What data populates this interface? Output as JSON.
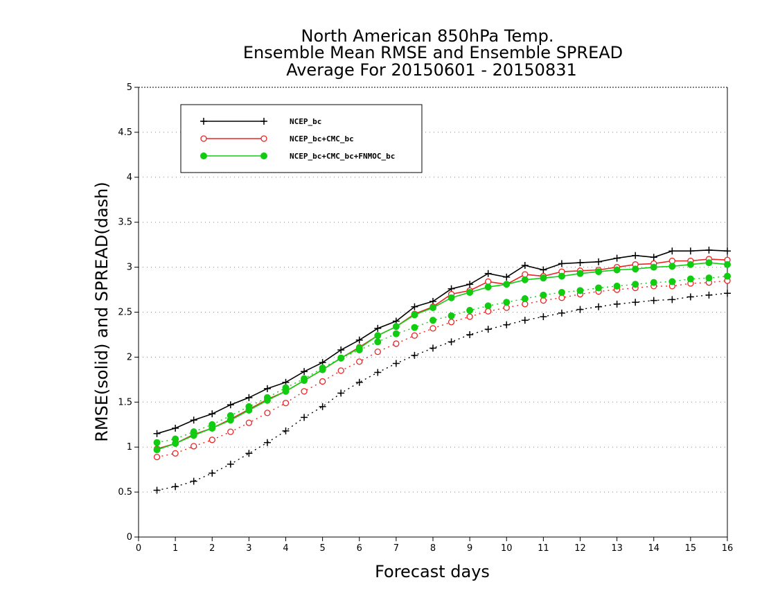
{
  "chart_data": {
    "type": "line",
    "title_lines": [
      "North American 850hPa Temp.",
      "Ensemble Mean RMSE and Ensemble SPREAD",
      "Average For 20150601 - 20150831"
    ],
    "xlabel": "Forecast days",
    "ylabel": "RMSE(solid) and SPREAD(dash)",
    "xlim": [
      0,
      16
    ],
    "ylim": [
      0,
      5
    ],
    "x_ticks": [
      0,
      1,
      2,
      3,
      4,
      5,
      6,
      7,
      8,
      9,
      10,
      11,
      12,
      13,
      14,
      15,
      16
    ],
    "y_ticks": [
      0,
      0.5,
      1,
      1.5,
      2,
      2.5,
      3,
      3.5,
      4,
      4.5,
      5
    ],
    "y_tick_labels": [
      "0",
      "0.5",
      "1",
      "1.5",
      "2",
      "2.5",
      "3",
      "3.5",
      "4",
      "4.5",
      "5"
    ],
    "grid": "horizontal dotted",
    "legend_placement": "top-left",
    "x": [
      0.5,
      1,
      1.5,
      2,
      2.5,
      3,
      3.5,
      4,
      4.5,
      5,
      5.5,
      6,
      6.5,
      7,
      7.5,
      8,
      8.5,
      9,
      9.5,
      10,
      10.5,
      11,
      11.5,
      12,
      12.5,
      13,
      13.5,
      14,
      14.5,
      15,
      15.5,
      16
    ],
    "series": [
      {
        "name": "NCEP_bc",
        "color": "#000000",
        "marker": "plus",
        "rmse": [
          1.15,
          1.21,
          1.3,
          1.37,
          1.47,
          1.55,
          1.65,
          1.72,
          1.84,
          1.94,
          2.08,
          2.19,
          2.32,
          2.4,
          2.56,
          2.62,
          2.76,
          2.81,
          2.93,
          2.89,
          3.02,
          2.97,
          3.04,
          3.05,
          3.06,
          3.1,
          3.13,
          3.11,
          3.18,
          3.18,
          3.19,
          3.18
        ],
        "spread": [
          0.52,
          0.56,
          0.62,
          0.71,
          0.81,
          0.93,
          1.05,
          1.18,
          1.33,
          1.45,
          1.6,
          1.72,
          1.83,
          1.93,
          2.02,
          2.1,
          2.17,
          2.25,
          2.31,
          2.36,
          2.41,
          2.45,
          2.49,
          2.53,
          2.56,
          2.59,
          2.61,
          2.63,
          2.64,
          2.67,
          2.69,
          2.71
        ]
      },
      {
        "name": "NCEP_bc+CMC_bc",
        "color": "#ee2222",
        "marker": "open-circle",
        "rmse": [
          0.98,
          1.04,
          1.14,
          1.21,
          1.31,
          1.42,
          1.53,
          1.62,
          1.74,
          1.86,
          1.99,
          2.11,
          2.24,
          2.34,
          2.48,
          2.56,
          2.7,
          2.74,
          2.84,
          2.81,
          2.92,
          2.9,
          2.95,
          2.96,
          2.97,
          3.0,
          3.03,
          3.04,
          3.07,
          3.07,
          3.09,
          3.08
        ],
        "spread": [
          0.89,
          0.93,
          1.01,
          1.08,
          1.17,
          1.27,
          1.38,
          1.49,
          1.62,
          1.73,
          1.85,
          1.95,
          2.06,
          2.15,
          2.24,
          2.32,
          2.39,
          2.45,
          2.51,
          2.55,
          2.59,
          2.63,
          2.66,
          2.7,
          2.73,
          2.75,
          2.77,
          2.79,
          2.79,
          2.82,
          2.83,
          2.85
        ]
      },
      {
        "name": "NCEP_bc+CMC_bc+FNMOC_bc",
        "color": "#11cc11",
        "marker": "filled-circle",
        "rmse": [
          0.97,
          1.04,
          1.13,
          1.21,
          1.3,
          1.41,
          1.52,
          1.62,
          1.74,
          1.86,
          1.99,
          2.1,
          2.24,
          2.34,
          2.47,
          2.55,
          2.66,
          2.72,
          2.78,
          2.81,
          2.86,
          2.88,
          2.9,
          2.93,
          2.95,
          2.97,
          2.98,
          3.0,
          3.01,
          3.03,
          3.05,
          3.03
        ],
        "spread": [
          1.05,
          1.09,
          1.17,
          1.25,
          1.35,
          1.45,
          1.55,
          1.66,
          1.76,
          1.88,
          1.99,
          2.08,
          2.17,
          2.26,
          2.33,
          2.41,
          2.46,
          2.52,
          2.57,
          2.61,
          2.65,
          2.69,
          2.72,
          2.74,
          2.77,
          2.79,
          2.81,
          2.83,
          2.84,
          2.87,
          2.88,
          2.9
        ]
      }
    ]
  }
}
